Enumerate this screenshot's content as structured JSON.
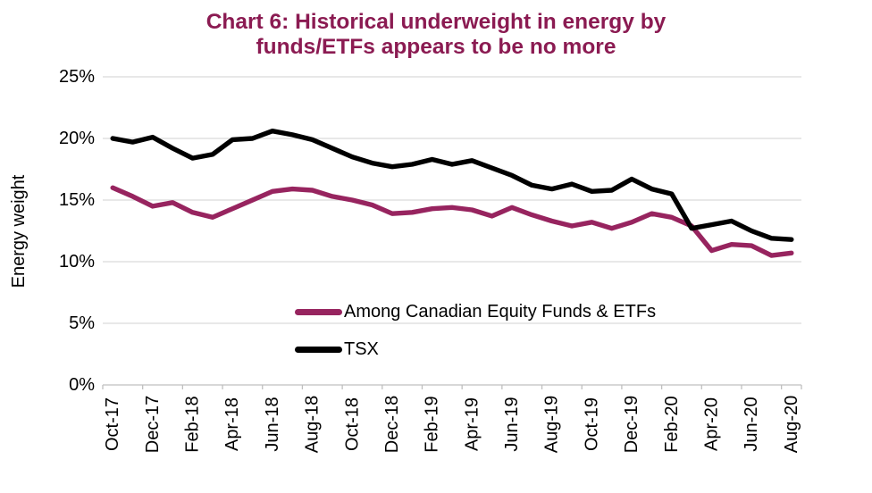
{
  "chart": {
    "title_lines": [
      "Chart 6: Historical underweight in energy by",
      "funds/ETFs appears to be no more"
    ],
    "title_color": "#8b1b52",
    "y_axis_title": "Energy weight",
    "legend": [
      {
        "label": "Among Canadian Equity Funds & ETFs",
        "color": "#97245f"
      },
      {
        "label": "TSX",
        "color": "#000000"
      }
    ]
  },
  "chart_data": {
    "type": "line",
    "title": "Chart 6: Historical underweight in energy by funds/ETFs appears to be no more",
    "xlabel": "",
    "ylabel": "Energy weight",
    "ylim": [
      0,
      25
    ],
    "y_ticks": [
      25,
      20,
      15,
      10,
      5,
      0
    ],
    "y_tick_labels": [
      "25%",
      "20%",
      "15%",
      "10%",
      "5%",
      "0%"
    ],
    "x": [
      "Oct-17",
      "Nov-17",
      "Dec-17",
      "Jan-18",
      "Feb-18",
      "Mar-18",
      "Apr-18",
      "May-18",
      "Jun-18",
      "Jul-18",
      "Aug-18",
      "Sep-18",
      "Oct-18",
      "Nov-18",
      "Dec-18",
      "Jan-19",
      "Feb-19",
      "Mar-19",
      "Apr-19",
      "May-19",
      "Jun-19",
      "Jul-19",
      "Aug-19",
      "Sep-19",
      "Oct-19",
      "Nov-19",
      "Dec-19",
      "Jan-20",
      "Feb-20",
      "Mar-20",
      "Apr-20",
      "May-20",
      "Jun-20",
      "Jul-20",
      "Aug-20"
    ],
    "x_tick_labels": [
      "Oct-17",
      "Dec-17",
      "Feb-18",
      "Apr-18",
      "Jun-18",
      "Aug-18",
      "Oct-18",
      "Dec-18",
      "Feb-19",
      "Apr-19",
      "Jun-19",
      "Aug-19",
      "Oct-19",
      "Dec-19",
      "Feb-20",
      "Apr-20",
      "Jun-20",
      "Aug-20"
    ],
    "grid": "horizontal gridlines every 5%",
    "legend_position": "inside bottom-center",
    "series": [
      {
        "name": "Among Canadian Equity Funds & ETFs",
        "color": "#97245f",
        "values": [
          16.0,
          15.3,
          14.5,
          14.8,
          14.0,
          13.6,
          14.3,
          15.0,
          15.7,
          15.9,
          15.8,
          15.3,
          15.0,
          14.6,
          13.9,
          14.0,
          14.3,
          14.4,
          14.2,
          13.7,
          14.4,
          13.8,
          13.3,
          12.9,
          13.2,
          12.7,
          13.2,
          13.9,
          13.6,
          12.9,
          10.9,
          11.4,
          11.3,
          10.5,
          10.7
        ]
      },
      {
        "name": "TSX",
        "color": "#000000",
        "values": [
          20.0,
          19.7,
          20.1,
          19.2,
          18.4,
          18.7,
          19.9,
          20.0,
          20.6,
          20.3,
          19.9,
          19.2,
          18.5,
          18.0,
          17.7,
          17.9,
          18.3,
          17.9,
          18.2,
          17.6,
          17.0,
          16.2,
          15.9,
          16.3,
          15.7,
          15.8,
          16.7,
          15.9,
          15.5,
          12.7,
          13.0,
          13.3,
          12.5,
          11.9,
          11.8
        ]
      }
    ]
  }
}
